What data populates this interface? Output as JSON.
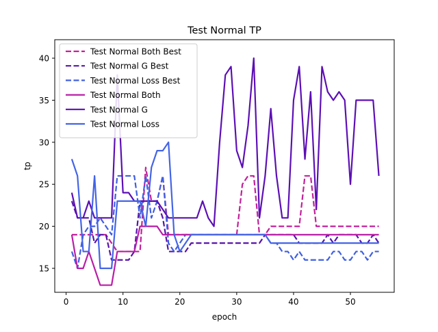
{
  "chart_data": {
    "type": "line",
    "title": "Test Normal TP",
    "xlabel": "epoch",
    "ylabel": "tp",
    "xlim": [
      -2,
      57.7
    ],
    "ylim": [
      12.15,
      42.2
    ],
    "xticks": [
      0,
      10,
      20,
      30,
      40,
      50
    ],
    "yticks": [
      15,
      20,
      25,
      30,
      35,
      40
    ],
    "grid": false,
    "legend": "top-left",
    "x": [
      1,
      2,
      3,
      4,
      5,
      6,
      7,
      8,
      9,
      10,
      11,
      12,
      13,
      14,
      15,
      16,
      17,
      18,
      19,
      20,
      21,
      22,
      23,
      24,
      25,
      26,
      27,
      28,
      29,
      30,
      31,
      32,
      33,
      34,
      35,
      36,
      37,
      38,
      39,
      40,
      41,
      42,
      43,
      44,
      45,
      46,
      47,
      48,
      49,
      50,
      51,
      52,
      53,
      54,
      55
    ],
    "series": [
      {
        "name": "Test Normal Both Best",
        "color": "#c2209a",
        "dash": "dashed",
        "values": [
          19,
          19,
          19,
          19,
          19,
          19,
          19,
          18,
          17,
          17,
          17,
          17,
          17,
          27,
          23,
          23,
          26,
          19,
          19,
          19,
          19,
          19,
          19,
          19,
          19,
          19,
          19,
          19,
          19,
          19,
          25,
          26,
          26,
          19,
          19,
          20,
          20,
          20,
          20,
          20,
          20,
          26,
          26,
          20,
          20,
          20,
          20,
          20,
          20,
          20,
          20,
          20,
          20,
          20,
          20
        ]
      },
      {
        "name": "Test Normal G Best",
        "color": "#5714a9",
        "dash": "dashed",
        "values": [
          23,
          21,
          21,
          21,
          18,
          19,
          19,
          16,
          16,
          16,
          16,
          17,
          23,
          23,
          23,
          23,
          21,
          17,
          17,
          17,
          17,
          18,
          18,
          18,
          18,
          18,
          18,
          18,
          18,
          18,
          18,
          18,
          18,
          18,
          19,
          19,
          19,
          19,
          19,
          19,
          18,
          18,
          18,
          18,
          18,
          19,
          18,
          19,
          19,
          19,
          19,
          18,
          18,
          19,
          18
        ]
      },
      {
        "name": "Test Normal Loss Best",
        "color": "#3f5fe0",
        "dash": "dashed",
        "values": [
          17,
          15,
          19,
          20,
          20,
          21,
          20,
          19,
          26,
          26,
          26,
          26,
          21,
          26,
          21,
          23,
          26,
          18,
          17,
          18,
          19,
          19,
          19,
          19,
          19,
          19,
          19,
          19,
          19,
          19,
          19,
          19,
          19,
          19,
          19,
          18,
          18,
          17,
          17,
          16,
          17,
          16,
          16,
          16,
          16,
          16,
          17,
          17,
          16,
          16,
          17,
          17,
          16,
          17,
          17
        ]
      },
      {
        "name": "Test Normal Both",
        "color": "#b81ea6",
        "dash": "solid",
        "values": [
          19,
          15,
          15,
          17,
          15,
          13,
          13,
          13,
          17,
          17,
          17,
          17,
          20,
          20,
          20,
          20,
          19,
          19,
          19,
          19,
          19,
          19,
          19,
          19,
          19,
          19,
          19,
          19,
          19,
          19,
          19,
          19,
          19,
          19,
          19,
          19,
          19,
          19,
          19,
          19,
          19,
          19,
          19,
          19,
          19,
          19,
          19,
          19,
          19,
          19,
          19,
          19,
          19,
          19,
          19
        ]
      },
      {
        "name": "Test Normal G",
        "color": "#5c0fb4",
        "dash": "solid",
        "values": [
          24,
          21,
          21,
          23,
          21,
          21,
          21,
          21,
          38,
          24,
          24,
          23,
          23,
          23,
          23,
          23,
          22,
          21,
          21,
          21,
          21,
          21,
          21,
          23,
          21,
          20,
          30,
          38,
          39,
          29,
          27,
          32,
          40,
          21,
          26,
          34,
          26,
          21,
          21,
          35,
          39,
          28,
          36,
          22,
          39,
          36,
          35,
          36,
          35,
          25,
          35,
          35,
          35,
          35,
          26
        ]
      },
      {
        "name": "Test Normal Loss",
        "color": "#4364e6",
        "dash": "solid",
        "values": [
          28,
          26,
          17,
          17,
          26,
          15,
          15,
          15,
          23,
          23,
          23,
          23,
          23,
          20,
          27,
          29,
          29,
          30,
          19,
          17,
          18,
          19,
          19,
          19,
          19,
          19,
          19,
          19,
          19,
          19,
          19,
          19,
          19,
          19,
          19,
          18,
          18,
          18,
          18,
          18,
          18,
          18,
          18,
          18,
          18,
          18,
          18,
          18,
          18,
          18,
          18,
          18,
          18,
          18,
          18
        ]
      }
    ]
  }
}
